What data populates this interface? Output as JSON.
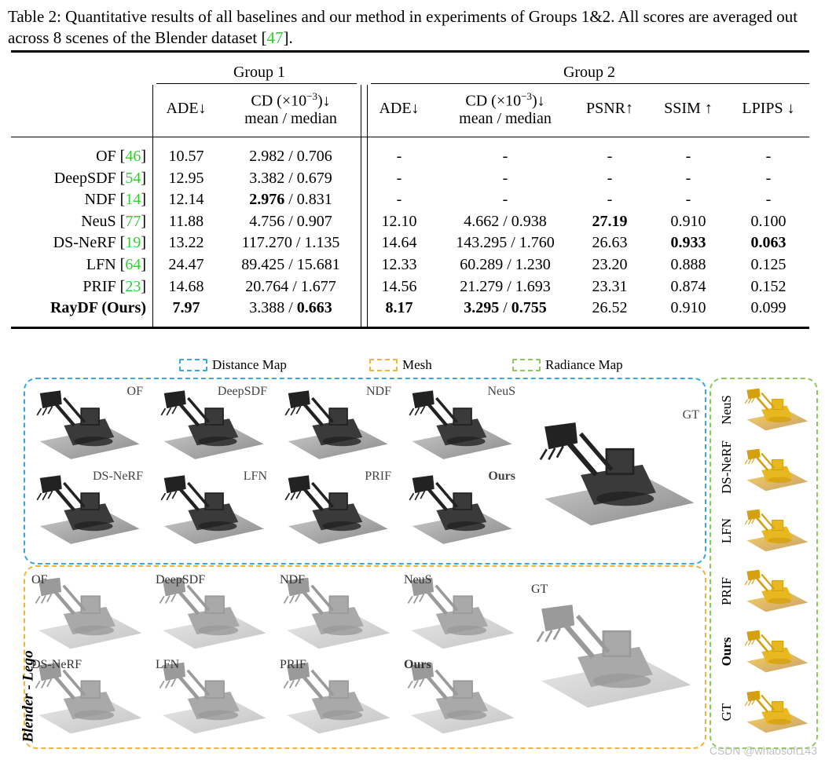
{
  "caption": {
    "prefix": "Table 2: Quantitative results of all baselines and our method in experiments of Groups 1&2. All scores are averaged out across 8 scenes of the Blender dataset [",
    "ref": "47",
    "suffix": "]."
  },
  "table": {
    "group1": "Group 1",
    "group2": "Group 2",
    "headers": {
      "ade": "ADE↓",
      "cd_line1": "CD (×10",
      "cd_exp": "−3",
      "cd_arrow": ")↓",
      "cd_line2": "mean / median",
      "psnr": "PSNR↑",
      "ssim": "SSIM ↑",
      "lpips": "LPIPS ↓"
    },
    "rows": [
      {
        "name": "OF [",
        "ref": "46",
        "close": "]",
        "ade1": "10.57",
        "cd1a": "2.982",
        "cd1b": "0.706",
        "ade2": "-",
        "cd2": "-",
        "psnr": "-",
        "ssim": "-",
        "lpips": "-"
      },
      {
        "name": "DeepSDF [",
        "ref": "54",
        "close": "]",
        "ade1": "12.95",
        "cd1a": "3.382",
        "cd1b": "0.679",
        "ade2": "-",
        "cd2": "-",
        "psnr": "-",
        "ssim": "-",
        "lpips": "-"
      },
      {
        "name": "NDF [",
        "ref": "14",
        "close": "]",
        "ade1": "12.14",
        "cd1a": "2.976",
        "cd1b": "0.831",
        "ade2": "-",
        "cd2": "-",
        "psnr": "-",
        "ssim": "-",
        "lpips": "-"
      },
      {
        "name": "NeuS [",
        "ref": "77",
        "close": "]",
        "ade1": "11.88",
        "cd1a": "4.756",
        "cd1b": "0.907",
        "ade2": "12.10",
        "cd2a": "4.662",
        "cd2b": "0.938",
        "psnr": "27.19",
        "ssim": "0.910",
        "lpips": "0.100"
      },
      {
        "name": "DS-NeRF [",
        "ref": "19",
        "close": "]",
        "ade1": "13.22",
        "cd1a": "117.270",
        "cd1b": "1.135",
        "ade2": "14.64",
        "cd2a": "143.295",
        "cd2b": "1.760",
        "psnr": "26.63",
        "ssim": "0.933",
        "lpips": "0.063"
      },
      {
        "name": "LFN [",
        "ref": "64",
        "close": "]",
        "ade1": "24.47",
        "cd1a": "89.425",
        "cd1b": "15.681",
        "ade2": "12.33",
        "cd2a": "60.289",
        "cd2b": "1.230",
        "psnr": "23.20",
        "ssim": "0.888",
        "lpips": "0.125"
      },
      {
        "name": "PRIF [",
        "ref": "23",
        "close": "]",
        "ade1": "14.68",
        "cd1a": "20.764",
        "cd1b": "1.677",
        "ade2": "14.56",
        "cd2a": "21.279",
        "cd2b": "1.693",
        "psnr": "23.31",
        "ssim": "0.874",
        "lpips": "0.152"
      },
      {
        "name": "RayDF (Ours)",
        "ref": "",
        "close": "",
        "ade1": "7.97",
        "cd1a": "3.388",
        "cd1b": "0.663",
        "ade2": "8.17",
        "cd2a": "3.295",
        "cd2b": "0.755",
        "psnr": "26.52",
        "ssim": "0.910",
        "lpips": "0.099"
      }
    ],
    "sep": " / "
  },
  "legend": {
    "distance": "Distance Map",
    "mesh": "Mesh",
    "radiance": "Radiance Map"
  },
  "colors": {
    "distance": "#3aa8e0",
    "mesh": "#f0b43a",
    "radiance": "#8cc85a",
    "ref": "#2fcf2f"
  },
  "figure": {
    "distance_labels": [
      "OF",
      "DeepSDF",
      "NDF",
      "NeuS",
      "DS-NeRF",
      "LFN",
      "PRIF",
      "Ours"
    ],
    "mesh_labels": [
      "OF",
      "DeepSDF",
      "NDF",
      "NeuS",
      "DS-NeRF",
      "LFN",
      "PRIF",
      "Ours"
    ],
    "gt": "GT",
    "radiance_labels": [
      "NeuS",
      "DS-NeRF",
      "LFN",
      "PRIF",
      "Ours",
      "GT"
    ],
    "side_label": "Blender - Lego"
  },
  "watermark": "CSDN @whaosoft143"
}
